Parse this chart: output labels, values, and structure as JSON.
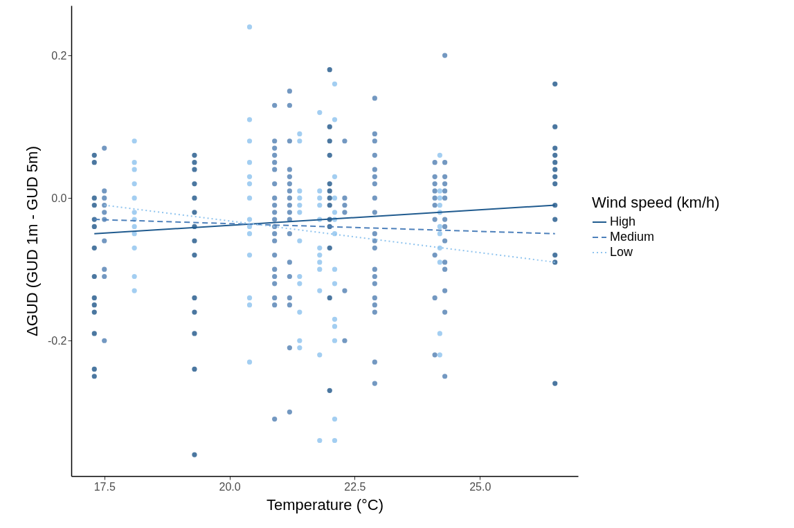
{
  "chart_data": {
    "type": "scatter",
    "xlabel": "Temperature (°C)",
    "ylabel": "ΔGUD (GUD 1m - GUD 5m)",
    "legend_title": "Wind speed (km/h)",
    "legend": "right",
    "grid": false,
    "xlim": [
      16.84,
      26.96
    ],
    "xticks": [
      17.5,
      {
        "value": 20,
        "label": "20.0"
      },
      22.5,
      {
        "value": 25,
        "label": "25.0"
      }
    ],
    "ylim": [
      -0.39,
      0.27
    ],
    "yticks": [
      -0.2,
      {
        "value": 0,
        "label": "0.0"
      },
      0.2
    ],
    "series": [
      {
        "marker": "circle",
        "color": "#2b5f8f",
        "x": [
          17.3,
          17.3,
          17.3,
          17.3,
          17.3,
          17.3,
          17.3,
          17.3,
          17.3,
          17.3,
          17.3,
          17.3,
          17.3,
          17.3,
          19.3,
          19.3,
          19.3,
          19.3,
          19.3,
          19.3,
          19.3,
          19.3,
          19.3,
          19.3,
          19.3,
          19.3,
          19.3,
          19.3,
          22.0,
          22.0,
          22.0,
          22.0,
          22.0,
          22.0,
          22.0,
          22.0,
          22.0,
          22.0,
          22.0,
          22.0,
          22.0,
          26.5,
          26.5,
          26.5,
          26.5,
          26.5,
          26.5,
          26.5,
          26.5,
          26.5,
          26.5,
          26.5,
          26.5,
          26.5
        ],
        "values": [
          0.06,
          0.05,
          0,
          -0.01,
          -0.03,
          -0.04,
          -0.07,
          -0.11,
          -0.14,
          -0.15,
          -0.16,
          -0.19,
          -0.24,
          -0.25,
          0.06,
          0.05,
          0.04,
          0.02,
          0,
          -0.02,
          -0.04,
          -0.06,
          -0.08,
          -0.14,
          -0.16,
          -0.19,
          -0.24,
          -0.36,
          0.18,
          0.1,
          0.08,
          0.06,
          0.02,
          0.01,
          0,
          -0.01,
          -0.03,
          -0.04,
          -0.07,
          -0.14,
          -0.27,
          0.16,
          0.1,
          0.07,
          0.06,
          0.05,
          0.04,
          0.03,
          0.02,
          -0.01,
          -0.03,
          -0.08,
          -0.09,
          -0.26
        ]
      },
      {
        "marker": "circle",
        "color": "#5a86b6",
        "x": [
          17.5,
          17.5,
          17.5,
          17.5,
          17.5,
          17.5,
          17.5,
          17.5,
          17.5,
          17.5,
          20.9,
          20.9,
          20.9,
          20.9,
          20.9,
          20.9,
          20.9,
          20.9,
          20.9,
          20.9,
          20.9,
          20.9,
          20.9,
          20.9,
          20.9,
          20.9,
          20.9,
          20.9,
          20.9,
          20.9,
          20.9,
          21.2,
          21.2,
          21.2,
          21.2,
          21.2,
          21.2,
          21.2,
          21.2,
          21.2,
          21.2,
          21.2,
          21.2,
          21.2,
          21.2,
          21.2,
          21.2,
          21.2,
          21.2,
          22.3,
          22.3,
          22.3,
          22.3,
          22.3,
          22.3,
          22.9,
          22.9,
          22.9,
          22.9,
          22.9,
          22.9,
          22.9,
          22.9,
          22.9,
          22.9,
          22.9,
          22.9,
          22.9,
          22.9,
          22.9,
          22.9,
          22.9,
          22.9,
          22.9,
          22.9,
          24.1,
          24.1,
          24.1,
          24.1,
          24.1,
          24.1,
          24.1,
          24.1,
          24.1,
          24.1,
          24.3,
          24.3,
          24.3,
          24.3,
          24.3,
          24.3,
          24.3,
          24.3,
          24.3,
          24.3,
          24.3,
          24.3,
          24.3,
          24.3
        ],
        "values": [
          0.07,
          0.01,
          0,
          -0.01,
          -0.02,
          -0.03,
          -0.06,
          -0.1,
          -0.11,
          -0.2,
          0.13,
          0.08,
          0.07,
          0.06,
          0.05,
          0.04,
          0.02,
          0,
          -0.01,
          -0.02,
          -0.03,
          -0.04,
          -0.05,
          -0.06,
          -0.08,
          -0.1,
          -0.11,
          -0.12,
          -0.14,
          -0.15,
          -0.31,
          0.15,
          0.13,
          0.08,
          0.04,
          0.03,
          0.02,
          0.01,
          0,
          -0.01,
          -0.02,
          -0.03,
          -0.05,
          -0.09,
          -0.11,
          -0.14,
          -0.15,
          -0.21,
          -0.3,
          0.08,
          0,
          -0.01,
          -0.02,
          -0.13,
          -0.2,
          0.14,
          0.09,
          0.08,
          0.06,
          0.04,
          0.03,
          0.02,
          0,
          -0.02,
          -0.05,
          -0.06,
          -0.07,
          -0.1,
          -0.11,
          -0.12,
          -0.14,
          -0.15,
          -0.16,
          -0.23,
          -0.26,
          0.05,
          0.03,
          0.02,
          0.01,
          0,
          -0.01,
          -0.03,
          -0.08,
          -0.14,
          -0.22,
          0.2,
          0.05,
          0.03,
          0.02,
          0.01,
          0,
          -0.03,
          -0.04,
          -0.06,
          -0.09,
          -0.1,
          -0.13,
          -0.16,
          -0.25
        ]
      },
      {
        "marker": "circle",
        "color": "#93c5ef",
        "x": [
          18.1,
          18.1,
          18.1,
          18.1,
          18.1,
          18.1,
          18.1,
          18.1,
          18.1,
          18.1,
          18.1,
          18.1,
          20.4,
          20.4,
          20.4,
          20.4,
          20.4,
          20.4,
          20.4,
          20.4,
          20.4,
          20.4,
          20.4,
          20.4,
          20.4,
          20.4,
          21.4,
          21.4,
          21.4,
          21.4,
          21.4,
          21.4,
          21.4,
          21.4,
          21.4,
          21.4,
          21.4,
          21.4,
          21.8,
          21.8,
          21.8,
          21.8,
          21.8,
          21.8,
          21.8,
          21.8,
          21.8,
          21.8,
          21.8,
          21.8,
          22.1,
          22.1,
          22.1,
          22.1,
          22.1,
          22.1,
          22.1,
          22.1,
          22.1,
          22.1,
          22.1,
          22.1,
          22.1,
          22.1,
          24.2,
          24.2,
          24.2,
          24.2,
          24.2,
          24.2,
          24.2,
          24.2,
          24.2,
          24.2,
          24.2
        ],
        "values": [
          0.08,
          0.05,
          0.04,
          0.02,
          0,
          -0.02,
          -0.03,
          -0.04,
          -0.05,
          -0.07,
          -0.11,
          -0.13,
          0.24,
          0.11,
          0.08,
          0.05,
          0.03,
          0.02,
          0,
          -0.03,
          -0.04,
          -0.05,
          -0.08,
          -0.14,
          -0.15,
          -0.23,
          0.09,
          0.08,
          0.01,
          0,
          -0.01,
          -0.02,
          -0.06,
          -0.11,
          -0.12,
          -0.16,
          -0.2,
          -0.21,
          0.12,
          0.01,
          0,
          -0.01,
          -0.03,
          -0.07,
          -0.08,
          -0.09,
          -0.1,
          -0.13,
          -0.22,
          -0.34,
          0.16,
          0.11,
          0.03,
          0,
          -0.02,
          -0.03,
          -0.05,
          -0.1,
          -0.12,
          -0.17,
          -0.18,
          -0.2,
          -0.31,
          -0.34,
          0.06,
          0.01,
          0,
          -0.01,
          -0.02,
          -0.04,
          -0.05,
          -0.07,
          -0.09,
          -0.19,
          -0.22
        ]
      },
      {
        "type": "line",
        "name": "High",
        "color": "#1f5a8e",
        "line_style": "solid",
        "x": [
          17.3,
          26.5
        ],
        "values": [
          -0.05,
          -0.01
        ]
      },
      {
        "type": "line",
        "name": "Medium",
        "color": "#4d80bb",
        "line_style": "dashed",
        "x": [
          17.3,
          26.5
        ],
        "values": [
          -0.03,
          -0.05
        ]
      },
      {
        "type": "line",
        "name": "Low",
        "color": "#8ec3ee",
        "line_style": "dotted",
        "x": [
          17.5,
          26.5
        ],
        "values": [
          -0.01,
          -0.09
        ]
      }
    ]
  }
}
